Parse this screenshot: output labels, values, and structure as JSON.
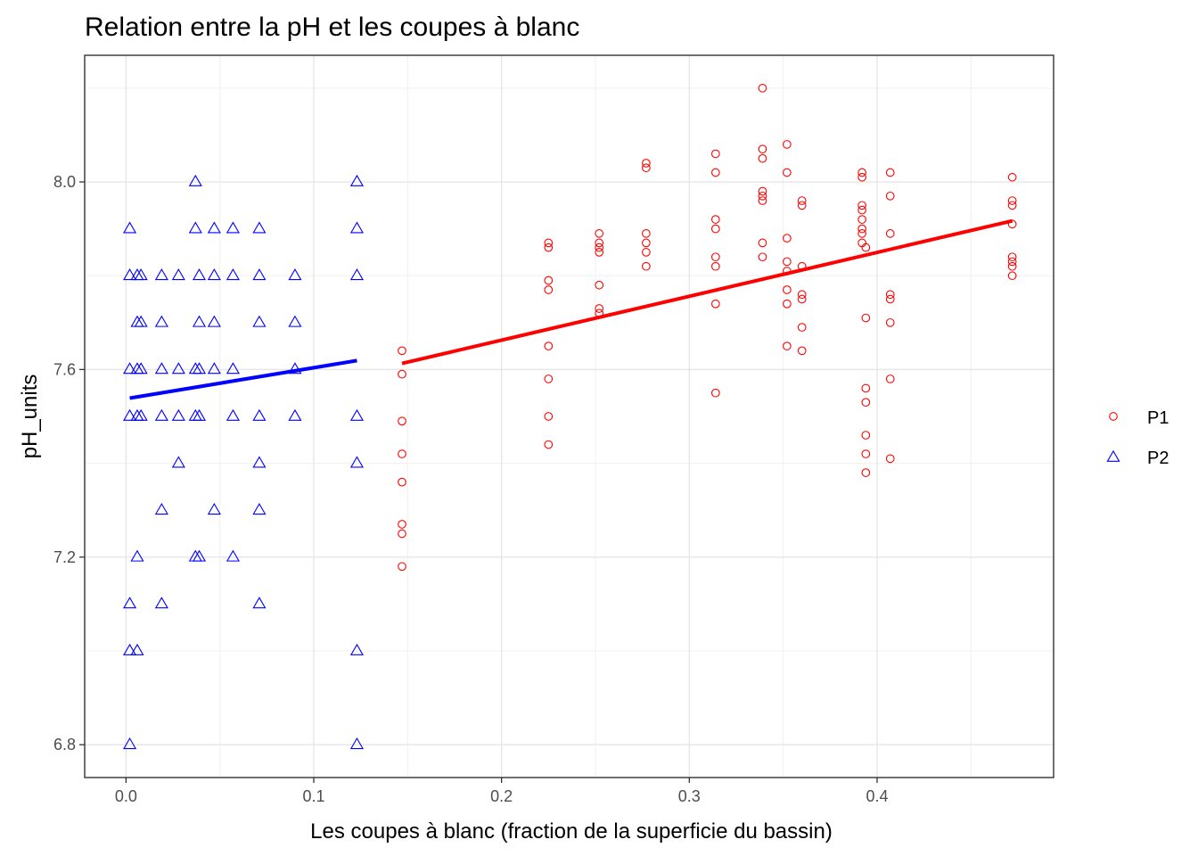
{
  "chart_data": {
    "type": "scatter",
    "title": "Relation entre la pH et les coupes à blanc",
    "xlabel": "Les coupes à blanc (fraction de la superficie du bassin)",
    "ylabel": "pH_units",
    "xlim": [
      -0.022,
      0.494
    ],
    "ylim": [
      6.73,
      8.27
    ],
    "x_ticks": [
      0.0,
      0.1,
      0.2,
      0.3,
      0.4
    ],
    "x_tick_labels": [
      "0.0",
      "0.1",
      "0.2",
      "0.3",
      "0.4"
    ],
    "y_ticks": [
      6.8,
      7.2,
      7.6,
      8.0
    ],
    "y_tick_labels": [
      "6.8",
      "7.2",
      "7.6",
      "8.0"
    ],
    "grid": true,
    "legend_position": "right",
    "series": [
      {
        "name": "P1",
        "marker": "circle",
        "color": "#ff0000",
        "points": [
          [
            0.147,
            7.64
          ],
          [
            0.147,
            7.59
          ],
          [
            0.147,
            7.49
          ],
          [
            0.147,
            7.42
          ],
          [
            0.147,
            7.36
          ],
          [
            0.147,
            7.27
          ],
          [
            0.147,
            7.25
          ],
          [
            0.147,
            7.18
          ],
          [
            0.225,
            7.87
          ],
          [
            0.225,
            7.86
          ],
          [
            0.225,
            7.79
          ],
          [
            0.225,
            7.77
          ],
          [
            0.225,
            7.65
          ],
          [
            0.225,
            7.58
          ],
          [
            0.225,
            7.5
          ],
          [
            0.225,
            7.44
          ],
          [
            0.252,
            7.89
          ],
          [
            0.252,
            7.87
          ],
          [
            0.252,
            7.86
          ],
          [
            0.252,
            7.85
          ],
          [
            0.252,
            7.78
          ],
          [
            0.252,
            7.73
          ],
          [
            0.252,
            7.72
          ],
          [
            0.277,
            8.04
          ],
          [
            0.277,
            8.03
          ],
          [
            0.277,
            7.89
          ],
          [
            0.277,
            7.87
          ],
          [
            0.277,
            7.85
          ],
          [
            0.277,
            7.82
          ],
          [
            0.314,
            8.06
          ],
          [
            0.314,
            8.02
          ],
          [
            0.314,
            7.92
          ],
          [
            0.314,
            7.9
          ],
          [
            0.314,
            7.84
          ],
          [
            0.314,
            7.82
          ],
          [
            0.314,
            7.74
          ],
          [
            0.314,
            7.55
          ],
          [
            0.339,
            8.2
          ],
          [
            0.339,
            8.07
          ],
          [
            0.339,
            8.05
          ],
          [
            0.339,
            7.98
          ],
          [
            0.339,
            7.97
          ],
          [
            0.339,
            7.96
          ],
          [
            0.339,
            7.87
          ],
          [
            0.339,
            7.84
          ],
          [
            0.352,
            8.08
          ],
          [
            0.352,
            8.02
          ],
          [
            0.352,
            7.88
          ],
          [
            0.352,
            7.83
          ],
          [
            0.352,
            7.81
          ],
          [
            0.352,
            7.77
          ],
          [
            0.352,
            7.74
          ],
          [
            0.352,
            7.65
          ],
          [
            0.36,
            7.96
          ],
          [
            0.36,
            7.95
          ],
          [
            0.36,
            7.82
          ],
          [
            0.36,
            7.76
          ],
          [
            0.36,
            7.75
          ],
          [
            0.36,
            7.69
          ],
          [
            0.36,
            7.64
          ],
          [
            0.392,
            8.02
          ],
          [
            0.392,
            8.01
          ],
          [
            0.392,
            7.95
          ],
          [
            0.392,
            7.94
          ],
          [
            0.392,
            7.92
          ],
          [
            0.392,
            7.9
          ],
          [
            0.392,
            7.89
          ],
          [
            0.392,
            7.87
          ],
          [
            0.394,
            7.86
          ],
          [
            0.394,
            7.71
          ],
          [
            0.394,
            7.56
          ],
          [
            0.394,
            7.53
          ],
          [
            0.394,
            7.46
          ],
          [
            0.394,
            7.42
          ],
          [
            0.394,
            7.38
          ],
          [
            0.407,
            8.02
          ],
          [
            0.407,
            7.97
          ],
          [
            0.407,
            7.89
          ],
          [
            0.407,
            7.76
          ],
          [
            0.407,
            7.75
          ],
          [
            0.407,
            7.7
          ],
          [
            0.407,
            7.58
          ],
          [
            0.407,
            7.41
          ],
          [
            0.472,
            8.01
          ],
          [
            0.472,
            7.96
          ],
          [
            0.472,
            7.95
          ],
          [
            0.472,
            7.91
          ],
          [
            0.472,
            7.84
          ],
          [
            0.472,
            7.83
          ],
          [
            0.472,
            7.82
          ],
          [
            0.472,
            7.8
          ]
        ],
        "trend": [
          [
            0.147,
            7.613
          ],
          [
            0.472,
            7.917
          ]
        ]
      },
      {
        "name": "P2",
        "marker": "triangle",
        "color": "#0000ff",
        "points": [
          [
            0.002,
            7.9
          ],
          [
            0.002,
            7.8
          ],
          [
            0.002,
            7.6
          ],
          [
            0.002,
            7.5
          ],
          [
            0.002,
            7.1
          ],
          [
            0.002,
            7.0
          ],
          [
            0.002,
            6.8
          ],
          [
            0.006,
            7.8
          ],
          [
            0.006,
            7.7
          ],
          [
            0.006,
            7.6
          ],
          [
            0.006,
            7.5
          ],
          [
            0.006,
            7.2
          ],
          [
            0.006,
            7.0
          ],
          [
            0.008,
            7.8
          ],
          [
            0.008,
            7.7
          ],
          [
            0.008,
            7.6
          ],
          [
            0.008,
            7.5
          ],
          [
            0.019,
            7.8
          ],
          [
            0.019,
            7.7
          ],
          [
            0.019,
            7.6
          ],
          [
            0.019,
            7.5
          ],
          [
            0.019,
            7.3
          ],
          [
            0.019,
            7.1
          ],
          [
            0.028,
            7.8
          ],
          [
            0.028,
            7.6
          ],
          [
            0.028,
            7.5
          ],
          [
            0.028,
            7.4
          ],
          [
            0.037,
            8.0
          ],
          [
            0.037,
            7.9
          ],
          [
            0.037,
            7.6
          ],
          [
            0.037,
            7.5
          ],
          [
            0.037,
            7.2
          ],
          [
            0.039,
            7.8
          ],
          [
            0.039,
            7.7
          ],
          [
            0.039,
            7.6
          ],
          [
            0.039,
            7.5
          ],
          [
            0.039,
            7.2
          ],
          [
            0.047,
            7.9
          ],
          [
            0.047,
            7.8
          ],
          [
            0.047,
            7.7
          ],
          [
            0.047,
            7.6
          ],
          [
            0.047,
            7.3
          ],
          [
            0.057,
            7.9
          ],
          [
            0.057,
            7.8
          ],
          [
            0.057,
            7.6
          ],
          [
            0.057,
            7.5
          ],
          [
            0.057,
            7.2
          ],
          [
            0.071,
            7.9
          ],
          [
            0.071,
            7.8
          ],
          [
            0.071,
            7.7
          ],
          [
            0.071,
            7.5
          ],
          [
            0.071,
            7.4
          ],
          [
            0.071,
            7.3
          ],
          [
            0.071,
            7.1
          ],
          [
            0.09,
            7.8
          ],
          [
            0.09,
            7.7
          ],
          [
            0.09,
            7.6
          ],
          [
            0.09,
            7.5
          ],
          [
            0.123,
            8.0
          ],
          [
            0.123,
            7.9
          ],
          [
            0.123,
            7.8
          ],
          [
            0.123,
            7.5
          ],
          [
            0.123,
            7.4
          ],
          [
            0.123,
            7.0
          ],
          [
            0.123,
            6.8
          ]
        ],
        "trend": [
          [
            0.002,
            7.539
          ],
          [
            0.123,
            7.619
          ]
        ]
      }
    ]
  }
}
